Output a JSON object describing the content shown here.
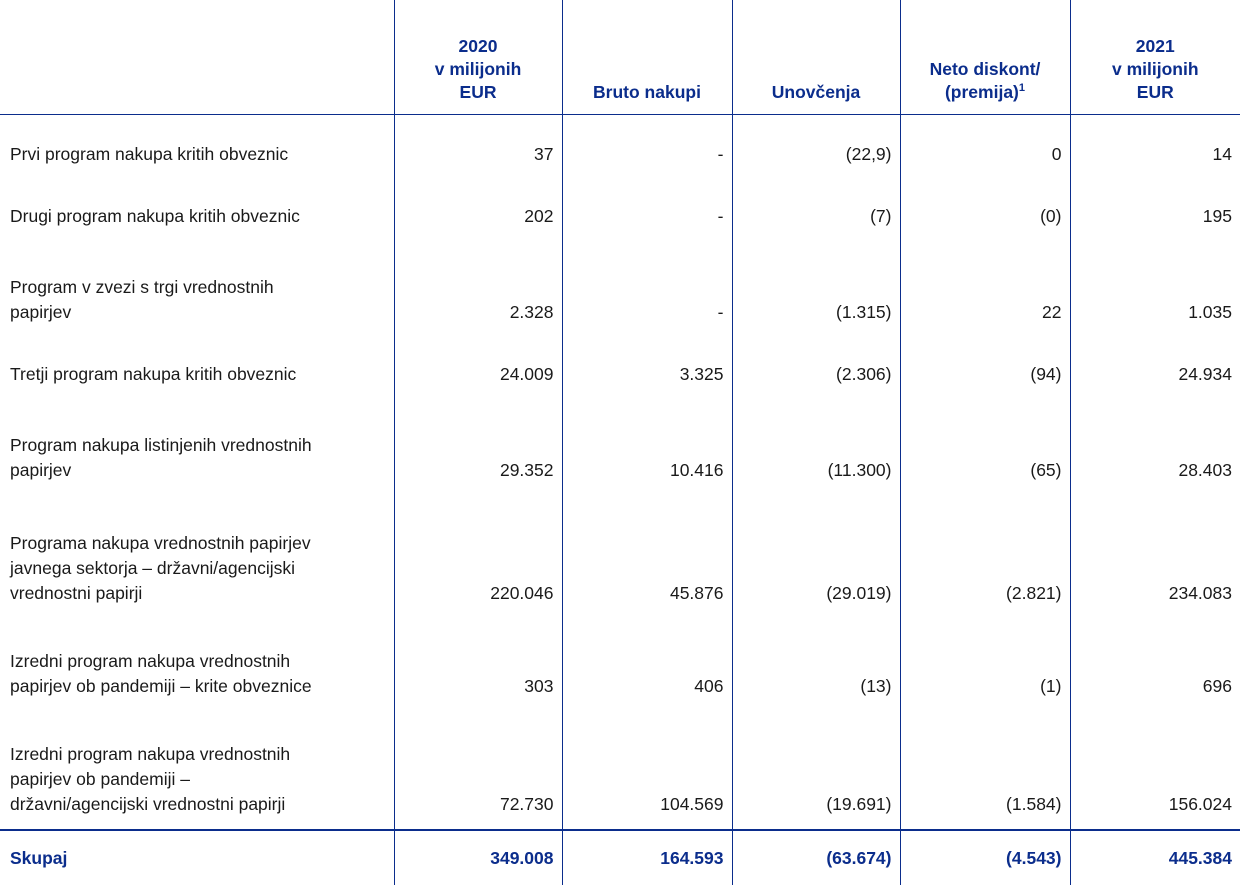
{
  "header": {
    "col1": [
      "2020",
      "v milijonih",
      "EUR"
    ],
    "col2": "Bruto nakupi",
    "col3": "Unovčenja",
    "col4": [
      "Neto diskont/",
      "(premija)",
      "1"
    ],
    "col5": [
      "2021",
      "v milijonih",
      "EUR"
    ]
  },
  "rows": [
    {
      "label": [
        "Prvi program nakupa kritih obveznic"
      ],
      "values": [
        "37",
        "-",
        "(22,9)",
        "0",
        "14"
      ]
    },
    {
      "label": [
        "Drugi program nakupa kritih obveznic"
      ],
      "values": [
        "202",
        "-",
        "(7)",
        "(0)",
        "195"
      ]
    },
    {
      "label": [
        "Program v zvezi s trgi vrednostnih",
        "papirjev"
      ],
      "values": [
        "2.328",
        "-",
        "(1.315)",
        "22",
        "1.035"
      ]
    },
    {
      "label": [
        "Tretji program nakupa kritih obveznic"
      ],
      "values": [
        "24.009",
        "3.325",
        "(2.306)",
        "(94)",
        "24.934"
      ]
    },
    {
      "label": [
        "Program nakupa listinjenih vrednostnih",
        "papirjev"
      ],
      "values": [
        "29.352",
        "10.416",
        "(11.300)",
        "(65)",
        "28.403"
      ]
    },
    {
      "label": [
        "Programa nakupa vrednostnih papirjev",
        "javnega sektorja – državni/agencijski",
        "vrednostni papirji"
      ],
      "values": [
        "220.046",
        "45.876",
        "(29.019)",
        "(2.821)",
        "234.083"
      ]
    },
    {
      "label": [
        "Izredni program nakupa vrednostnih",
        "papirjev ob pandemiji – krite obveznice"
      ],
      "values": [
        "303",
        "406",
        "(13)",
        "(1)",
        "696"
      ]
    },
    {
      "label": [
        "Izredni program nakupa vrednostnih",
        "papirjev ob pandemiji –",
        "državni/agencijski vrednostni papirji"
      ],
      "values": [
        "72.730",
        "104.569",
        "(19.691)",
        "(1.584)",
        "156.024"
      ]
    }
  ],
  "total": {
    "label": "Skupaj",
    "values": [
      "349.008",
      "164.593",
      "(63.674)",
      "(4.543)",
      "445.384"
    ]
  }
}
